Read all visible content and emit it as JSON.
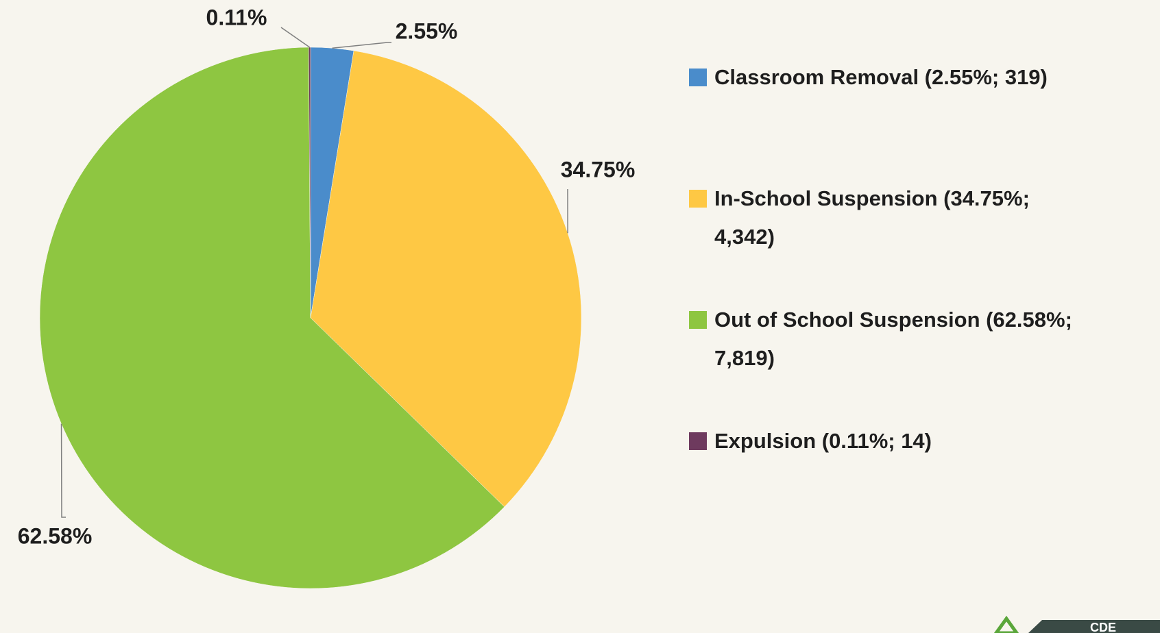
{
  "chart_data": {
    "type": "pie",
    "categories": [
      "Classroom Removal (2.55%; 319)",
      "In-School Suspension (34.75%; 4,342)",
      "Out of School Suspension (62.58%; 7,819)",
      "Expulsion (0.11%; 14)"
    ],
    "values": [
      2.55,
      34.75,
      62.58,
      0.11
    ],
    "value_labels": [
      "2.55%",
      "34.75%",
      "62.58%",
      "0.11%"
    ],
    "colors": [
      "#4a8ccb",
      "#fec844",
      "#8ec641",
      "#6e3a5e"
    ],
    "legend": "right"
  },
  "logo": "CDE"
}
